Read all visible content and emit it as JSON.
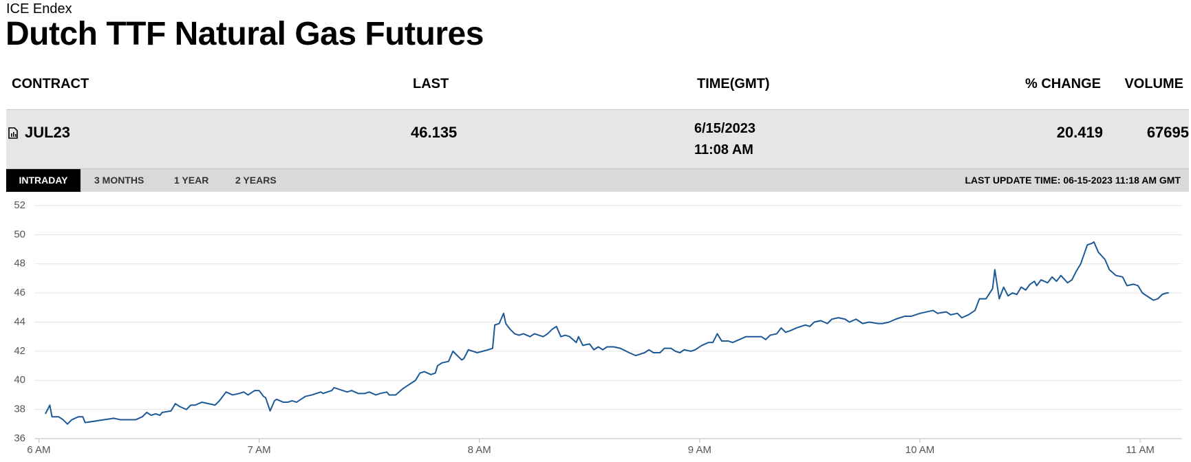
{
  "header": {
    "exchange": "ICE Endex",
    "title": "Dutch TTF Natural Gas Futures"
  },
  "table": {
    "columns": [
      "CONTRACT",
      "LAST",
      "TIME(GMT)",
      "% CHANGE",
      "VOLUME"
    ],
    "row": {
      "contract": "JUL23",
      "last": 46.135,
      "date": "6/15/2023",
      "time": "11:08 AM",
      "change": 20.419,
      "volume": 67695
    }
  },
  "tabs": [
    "INTRADAY",
    "3 MONTHS",
    "1 YEAR",
    "2 YEARS"
  ],
  "last_update": "LAST UPDATE TIME: 06-15-2023 11:18 AM GMT",
  "chart_data": {
    "type": "line",
    "color": "#1b5896",
    "grid": true,
    "xlim": [
      5.98,
      11.19
    ],
    "ylim": [
      36,
      52
    ],
    "xticks": [
      {
        "value": 6,
        "label": "6 AM"
      },
      {
        "value": 7,
        "label": "7 AM"
      },
      {
        "value": 8,
        "label": "8 AM"
      },
      {
        "value": 9,
        "label": "9 AM"
      },
      {
        "value": 10,
        "label": "10 AM"
      },
      {
        "value": 11,
        "label": "11 AM"
      }
    ],
    "yticks": [
      36,
      38,
      40,
      42,
      44,
      46,
      48,
      50,
      52
    ],
    "x": [
      6.03,
      6.05,
      6.06,
      6.09,
      6.11,
      6.13,
      6.15,
      6.18,
      6.2,
      6.21,
      6.34,
      6.37,
      6.43,
      6.44,
      6.47,
      6.49,
      6.51,
      6.53,
      6.55,
      6.56,
      6.6,
      6.62,
      6.64,
      6.67,
      6.69,
      6.71,
      6.74,
      6.77,
      6.8,
      6.82,
      6.85,
      6.88,
      6.91,
      6.93,
      6.95,
      6.98,
      7.0,
      7.02,
      7.03,
      7.05,
      7.07,
      7.08,
      7.11,
      7.13,
      7.15,
      7.17,
      7.19,
      7.21,
      7.24,
      7.28,
      7.29,
      7.33,
      7.34,
      7.38,
      7.4,
      7.42,
      7.45,
      7.48,
      7.5,
      7.53,
      7.55,
      7.58,
      7.59,
      7.62,
      7.65,
      7.67,
      7.71,
      7.73,
      7.75,
      7.78,
      7.8,
      7.81,
      7.83,
      7.86,
      7.88,
      7.9,
      7.92,
      7.93,
      7.95,
      7.97,
      7.99,
      8.04,
      8.06,
      8.07,
      8.09,
      8.11,
      8.12,
      8.14,
      8.16,
      8.18,
      8.2,
      8.23,
      8.25,
      8.27,
      8.29,
      8.31,
      8.33,
      8.35,
      8.37,
      8.39,
      8.41,
      8.44,
      8.45,
      8.47,
      8.5,
      8.52,
      8.54,
      8.56,
      8.58,
      8.61,
      8.64,
      8.68,
      8.71,
      8.75,
      8.77,
      8.79,
      8.82,
      8.84,
      8.87,
      8.89,
      8.91,
      8.93,
      8.96,
      8.98,
      9.01,
      9.04,
      9.06,
      9.08,
      9.1,
      9.13,
      9.15,
      9.18,
      9.21,
      9.25,
      9.28,
      9.3,
      9.32,
      9.35,
      9.37,
      9.39,
      9.41,
      9.44,
      9.48,
      9.5,
      9.52,
      9.55,
      9.58,
      9.6,
      9.63,
      9.66,
      9.68,
      9.71,
      9.74,
      9.77,
      9.81,
      9.83,
      9.86,
      9.89,
      9.93,
      9.96,
      10.0,
      10.03,
      10.06,
      10.08,
      10.12,
      10.14,
      10.17,
      10.19,
      10.22,
      10.25,
      10.27,
      10.3,
      10.33,
      10.34,
      10.36,
      10.38,
      10.4,
      10.42,
      10.44,
      10.46,
      10.48,
      10.5,
      10.52,
      10.53,
      10.55,
      10.58,
      10.6,
      10.62,
      10.64,
      10.67,
      10.69,
      10.71,
      10.73,
      10.76,
      10.78,
      10.79,
      10.81,
      10.84,
      10.86,
      10.89,
      10.92,
      10.94,
      10.97,
      10.99,
      11.01,
      11.04,
      11.06,
      11.08,
      11.1,
      11.12,
      11.13
    ],
    "values": [
      37.7,
      38.3,
      37.5,
      37.5,
      37.3,
      37.0,
      37.3,
      37.5,
      37.5,
      37.1,
      37.4,
      37.3,
      37.3,
      37.3,
      37.5,
      37.8,
      37.6,
      37.7,
      37.6,
      37.8,
      37.9,
      38.4,
      38.2,
      38.0,
      38.3,
      38.3,
      38.5,
      38.4,
      38.3,
      38.6,
      39.2,
      39.0,
      39.1,
      39.2,
      39.0,
      39.3,
      39.3,
      38.9,
      38.8,
      37.9,
      38.6,
      38.7,
      38.5,
      38.5,
      38.6,
      38.5,
      38.7,
      38.9,
      39.0,
      39.2,
      39.1,
      39.3,
      39.5,
      39.3,
      39.2,
      39.3,
      39.1,
      39.1,
      39.2,
      39.0,
      39.1,
      39.2,
      39.0,
      39.0,
      39.4,
      39.6,
      40.0,
      40.5,
      40.6,
      40.4,
      40.5,
      41.0,
      41.2,
      41.3,
      42.0,
      41.7,
      41.4,
      41.5,
      42.1,
      42.0,
      41.9,
      42.1,
      42.2,
      43.8,
      43.9,
      44.6,
      43.9,
      43.5,
      43.2,
      43.1,
      43.2,
      43.0,
      43.2,
      43.1,
      43.0,
      43.2,
      43.5,
      43.7,
      43.0,
      43.1,
      43.0,
      42.6,
      43.0,
      42.4,
      42.5,
      42.1,
      42.3,
      42.1,
      42.3,
      42.3,
      42.2,
      41.9,
      41.7,
      41.9,
      42.1,
      41.9,
      41.9,
      42.2,
      42.2,
      42.0,
      41.9,
      42.1,
      42.0,
      42.1,
      42.4,
      42.6,
      42.6,
      43.2,
      42.7,
      42.7,
      42.6,
      42.8,
      43.0,
      43.0,
      43.0,
      42.8,
      43.1,
      43.2,
      43.6,
      43.3,
      43.4,
      43.6,
      43.8,
      43.7,
      44.0,
      44.1,
      43.9,
      44.2,
      44.3,
      44.2,
      44.0,
      44.2,
      43.9,
      44.0,
      43.9,
      43.9,
      44.0,
      44.2,
      44.4,
      44.4,
      44.6,
      44.7,
      44.8,
      44.6,
      44.7,
      44.5,
      44.6,
      44.3,
      44.5,
      44.8,
      45.6,
      45.6,
      46.3,
      47.6,
      45.6,
      46.4,
      45.8,
      46.0,
      45.9,
      46.4,
      46.2,
      46.6,
      46.8,
      46.5,
      46.9,
      46.7,
      47.1,
      46.8,
      47.2,
      46.7,
      46.9,
      47.5,
      48.0,
      49.3,
      49.4,
      49.5,
      48.8,
      48.3,
      47.6,
      47.2,
      47.1,
      46.5,
      46.6,
      46.5,
      46.0,
      45.7,
      45.5,
      45.6,
      45.9,
      46.0,
      46.0
    ]
  }
}
